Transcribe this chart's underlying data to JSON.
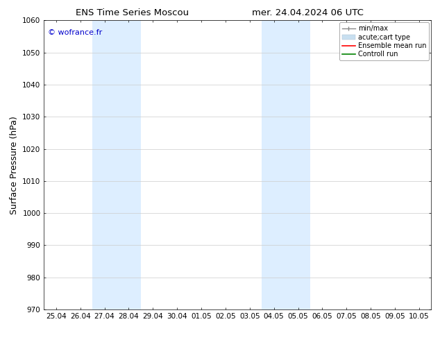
{
  "title_left": "ENS Time Series Moscou",
  "title_right": "mer. 24.04.2024 06 UTC",
  "ylabel": "Surface Pressure (hPa)",
  "ylim": [
    970,
    1060
  ],
  "yticks": [
    970,
    980,
    990,
    1000,
    1010,
    1020,
    1030,
    1040,
    1050,
    1060
  ],
  "x_tick_labels": [
    "25.04",
    "26.04",
    "27.04",
    "28.04",
    "29.04",
    "30.04",
    "01.05",
    "02.05",
    "03.05",
    "04.05",
    "05.05",
    "06.05",
    "07.05",
    "08.05",
    "09.05",
    "10.05"
  ],
  "x_tick_positions": [
    0,
    1,
    2,
    3,
    4,
    5,
    6,
    7,
    8,
    9,
    10,
    11,
    12,
    13,
    14,
    15
  ],
  "xlim": [
    -0.5,
    15.5
  ],
  "shaded_regions": [
    {
      "x_start": 1.5,
      "x_end": 3.5,
      "color": "#ddeeff"
    },
    {
      "x_start": 8.5,
      "x_end": 10.5,
      "color": "#ddeeff"
    }
  ],
  "watermark": "© wofrance.fr",
  "watermark_color": "#0000cc",
  "background_color": "#ffffff",
  "legend_entries": [
    {
      "label": "min/max"
    },
    {
      "label": "acute;cart type"
    },
    {
      "label": "Ensemble mean run"
    },
    {
      "label": "Controll run"
    }
  ],
  "legend_line_colors": [
    "#888888",
    "#c8dff0",
    "#ff0000",
    "#008000"
  ],
  "grid_color": "#cccccc",
  "spine_color": "#000000",
  "tick_label_fontsize": 7.5,
  "axis_label_fontsize": 9,
  "title_fontsize": 9.5
}
